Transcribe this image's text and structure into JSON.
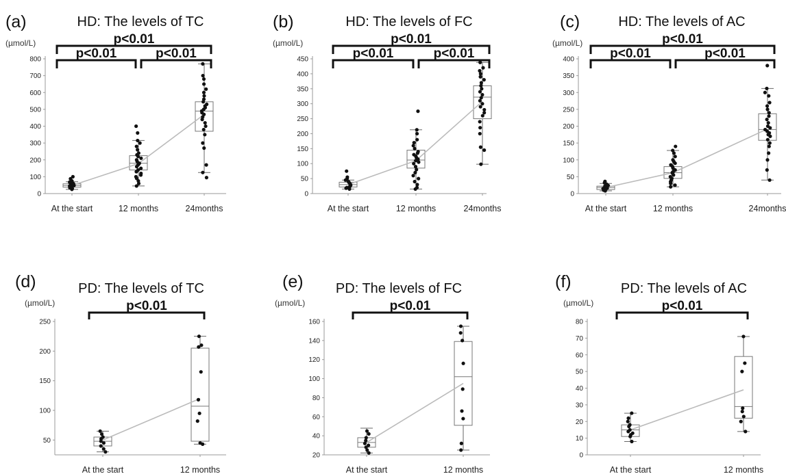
{
  "chart_data": [
    {
      "type": "box",
      "panel": "(a)",
      "title": "HD: The levels of TC",
      "ylabel": "(µmol/L)",
      "ylim": [
        0,
        800
      ],
      "yticks": [
        0,
        100,
        200,
        300,
        400,
        500,
        600,
        700,
        800
      ],
      "categories": [
        "At the start",
        "12 months",
        "24months"
      ],
      "boxes": [
        {
          "min": 25,
          "q1": 38,
          "median": 48,
          "q3": 58,
          "max": 70
        },
        {
          "min": 45,
          "q1": 140,
          "median": 180,
          "q3": 225,
          "max": 315
        },
        {
          "min": 125,
          "q1": 370,
          "median": 490,
          "q3": 545,
          "max": 770
        }
      ],
      "means": [
        48,
        178,
        470
      ],
      "points": [
        [
          25,
          30,
          35,
          38,
          40,
          42,
          45,
          48,
          50,
          52,
          55,
          58,
          62,
          68,
          75,
          88,
          100
        ],
        [
          45,
          60,
          75,
          90,
          100,
          110,
          120,
          130,
          140,
          150,
          160,
          170,
          175,
          180,
          190,
          200,
          210,
          220,
          230,
          240,
          260,
          280,
          300,
          315,
          360,
          400
        ],
        [
          95,
          125,
          170,
          270,
          300,
          350,
          380,
          400,
          420,
          440,
          455,
          470,
          480,
          490,
          500,
          510,
          520,
          530,
          545,
          560,
          580,
          600,
          620,
          650,
          680,
          700,
          770
        ]
      ],
      "comparisons": [
        {
          "from": 0,
          "to": 1,
          "label": "p<0.01"
        },
        {
          "from": 1,
          "to": 2,
          "label": "p<0.01"
        },
        {
          "from": 0,
          "to": 2,
          "label": "p<0.01"
        }
      ]
    },
    {
      "type": "box",
      "panel": "(b)",
      "title": "HD: The levels of FC",
      "ylabel": "(µmol/L)",
      "ylim": [
        0,
        450
      ],
      "yticks": [
        0,
        50,
        100,
        150,
        200,
        250,
        300,
        350,
        400,
        450
      ],
      "categories": [
        "At the start",
        "12 months",
        "24months"
      ],
      "boxes": [
        {
          "min": 15,
          "q1": 22,
          "median": 30,
          "q3": 38,
          "max": 45
        },
        {
          "min": 15,
          "q1": 85,
          "median": 112,
          "q3": 145,
          "max": 213
        },
        {
          "min": 98,
          "q1": 250,
          "median": 322,
          "q3": 360,
          "max": 438
        }
      ],
      "means": [
        30,
        110,
        308
      ],
      "points": [
        [
          15,
          18,
          20,
          22,
          25,
          28,
          30,
          32,
          35,
          38,
          40,
          45,
          50,
          55,
          75
        ],
        [
          15,
          20,
          30,
          40,
          50,
          60,
          70,
          80,
          90,
          100,
          105,
          110,
          115,
          120,
          125,
          130,
          135,
          140,
          150,
          160,
          170,
          180,
          200,
          213,
          275
        ],
        [
          98,
          145,
          155,
          200,
          220,
          240,
          260,
          270,
          280,
          290,
          300,
          310,
          320,
          330,
          340,
          350,
          360,
          370,
          380,
          390,
          400,
          410,
          420,
          438
        ]
      ],
      "comparisons": [
        {
          "from": 0,
          "to": 1,
          "label": "p<0.01"
        },
        {
          "from": 1,
          "to": 2,
          "label": "p<0.01"
        },
        {
          "from": 0,
          "to": 2,
          "label": "p<0.01"
        }
      ]
    },
    {
      "type": "box",
      "panel": "(c)",
      "title": "HD: The levels of AC",
      "ylabel": "(µmol/L)",
      "ylim": [
        0,
        400
      ],
      "yticks": [
        0,
        50,
        100,
        150,
        200,
        250,
        300,
        350,
        400
      ],
      "categories": [
        "At the start",
        "12 months",
        "24months"
      ],
      "boxes": [
        {
          "min": 8,
          "q1": 12,
          "median": 18,
          "q3": 22,
          "max": 30
        },
        {
          "min": 20,
          "q1": 45,
          "median": 62,
          "q3": 80,
          "max": 128
        },
        {
          "min": 40,
          "q1": 158,
          "median": 190,
          "q3": 237,
          "max": 312
        }
      ],
      "means": [
        18,
        62,
        192
      ],
      "points": [
        [
          8,
          10,
          12,
          14,
          15,
          16,
          18,
          20,
          22,
          24,
          26,
          28,
          32,
          36
        ],
        [
          20,
          25,
          30,
          35,
          40,
          45,
          50,
          55,
          60,
          62,
          65,
          70,
          75,
          80,
          85,
          90,
          95,
          100,
          110,
          120,
          128,
          140
        ],
        [
          40,
          70,
          100,
          120,
          140,
          150,
          160,
          170,
          175,
          180,
          185,
          190,
          195,
          200,
          210,
          220,
          230,
          240,
          250,
          260,
          270,
          290,
          300,
          312,
          380
        ]
      ],
      "comparisons": [
        {
          "from": 0,
          "to": 1,
          "label": "p<0.01"
        },
        {
          "from": 1,
          "to": 2,
          "label": "p<0.01"
        },
        {
          "from": 0,
          "to": 2,
          "label": "p<0.01"
        }
      ]
    },
    {
      "type": "box",
      "panel": "(d)",
      "title": "PD: The levels of TC",
      "ylabel": "(µmol/L)",
      "ylim": [
        25,
        250
      ],
      "yticks": [
        50,
        100,
        150,
        200,
        250
      ],
      "categories": [
        "At the start",
        "12 months"
      ],
      "boxes": [
        {
          "min": 30,
          "q1": 40,
          "median": 48,
          "q3": 55,
          "max": 65
        },
        {
          "min": 43,
          "q1": 48,
          "median": 107,
          "q3": 205,
          "max": 225
        }
      ],
      "means": [
        50,
        120
      ],
      "points": [
        [
          30,
          35,
          40,
          45,
          48,
          52,
          55,
          60,
          65
        ],
        [
          43,
          45,
          82,
          95,
          118,
          165,
          207,
          210,
          225
        ]
      ],
      "comparisons": [
        {
          "from": 0,
          "to": 1,
          "label": "p<0.01"
        }
      ]
    },
    {
      "type": "box",
      "panel": "(e)",
      "title": "PD: The levels of FC",
      "ylabel": "(µmol/L)",
      "ylim": [
        20,
        160
      ],
      "yticks": [
        20,
        40,
        60,
        80,
        100,
        120,
        140,
        160
      ],
      "categories": [
        "At the start",
        "12 months"
      ],
      "boxes": [
        {
          "min": 22,
          "q1": 28,
          "median": 33,
          "q3": 38,
          "max": 48
        },
        {
          "min": 25,
          "q1": 51,
          "median": 102,
          "q3": 139,
          "max": 155
        }
      ],
      "means": [
        33,
        95
      ],
      "points": [
        [
          22,
          25,
          28,
          30,
          32,
          35,
          38,
          42,
          45
        ],
        [
          25,
          32,
          58,
          66,
          89,
          116,
          140,
          148,
          155
        ]
      ],
      "comparisons": [
        {
          "from": 0,
          "to": 1,
          "label": "p<0.01"
        }
      ]
    },
    {
      "type": "box",
      "panel": "(f)",
      "title": "PD: The levels of AC",
      "ylabel": "(µmol/L)",
      "ylim": [
        0,
        80
      ],
      "yticks": [
        0,
        10,
        20,
        30,
        40,
        50,
        60,
        70,
        80
      ],
      "categories": [
        "At the start",
        "12 months"
      ],
      "boxes": [
        {
          "min": 8,
          "q1": 11,
          "median": 15,
          "q3": 18,
          "max": 25
        },
        {
          "min": 14,
          "q1": 22,
          "median": 29,
          "q3": 59,
          "max": 71
        }
      ],
      "means": [
        15,
        39
      ],
      "points": [
        [
          8,
          11,
          12,
          13,
          14,
          15,
          17,
          18,
          20,
          22,
          25
        ],
        [
          14,
          20,
          23,
          26,
          28,
          50,
          55,
          71
        ]
      ],
      "comparisons": [
        {
          "from": 0,
          "to": 1,
          "label": "p<0.01"
        }
      ]
    }
  ]
}
